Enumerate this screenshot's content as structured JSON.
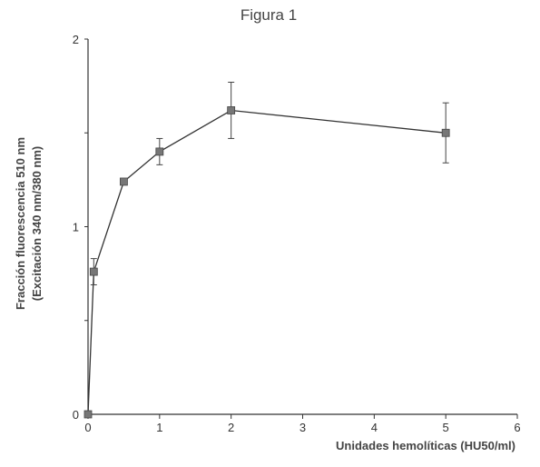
{
  "chart_data": {
    "type": "line",
    "title": "Figura 1",
    "xlabel": "Unidades hemolíticas (HU50/ml)",
    "ylabel": [
      "Fracción fluorescencia 510 nm",
      "(Excitación 340 nm/380 nm)"
    ],
    "xlim": [
      0,
      6
    ],
    "ylim": [
      0,
      2
    ],
    "x_ticks": [
      0,
      1,
      2,
      3,
      4,
      5,
      6
    ],
    "x_tick_labels": [
      "0",
      "1",
      "2",
      "3",
      "4",
      "5",
      "6"
    ],
    "y_ticks": [
      0,
      0.5,
      1,
      1.5,
      2
    ],
    "y_tick_labels": [
      "0",
      "",
      "1",
      "",
      "2"
    ],
    "grid": false,
    "series": [
      {
        "x": [
          0,
          0.08,
          0.5,
          1,
          2,
          5
        ],
        "y": [
          0,
          0.76,
          1.24,
          1.4,
          1.62,
          1.5
        ],
        "err": [
          0,
          0.07,
          0,
          0.07,
          0.15,
          0.16
        ]
      }
    ]
  }
}
